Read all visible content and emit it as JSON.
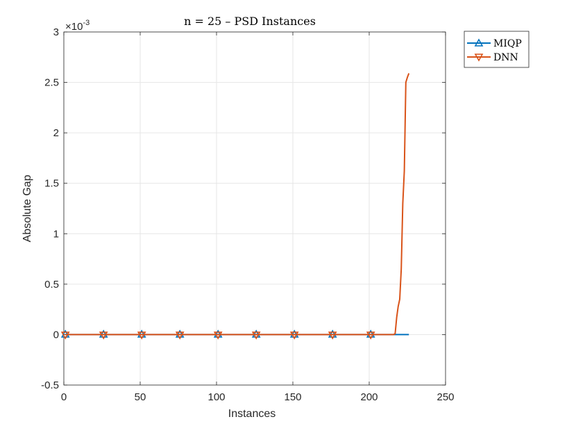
{
  "chart_data": {
    "type": "line",
    "title": "n = 25 – PSD Instances",
    "xlabel": "Instances",
    "ylabel": "Absolute Gap",
    "xlim": [
      0,
      250
    ],
    "ylim": [
      -0.5,
      3
    ],
    "y_exponent_label": "×10",
    "y_exponent_power": "-3",
    "xticks": [
      "0",
      "50",
      "100",
      "150",
      "200",
      "250"
    ],
    "xtick_values": [
      0,
      50,
      100,
      150,
      200,
      250
    ],
    "yticks": [
      "-0.5",
      "0",
      "0.5",
      "1",
      "1.5",
      "2",
      "2.5",
      "3"
    ],
    "ytick_values": [
      -0.5,
      0,
      0.5,
      1,
      1.5,
      2,
      2.5,
      3
    ],
    "grid": true,
    "legend_position": "outside-top-right",
    "series": [
      {
        "name": "MIQP",
        "color": "#0072BD",
        "marker": "triangle-up",
        "x": [
          1,
          26,
          51,
          76,
          101,
          126,
          151,
          176,
          201,
          226
        ],
        "y": [
          0,
          0,
          0,
          0,
          0,
          0,
          0,
          0,
          0,
          0
        ],
        "marker_indices": [
          0,
          1,
          2,
          3,
          4,
          5,
          6,
          7,
          8
        ]
      },
      {
        "name": "DNN",
        "color": "#D95319",
        "marker": "triangle-down",
        "x": [
          1,
          26,
          51,
          76,
          101,
          126,
          151,
          176,
          201,
          216,
          217,
          218,
          219,
          220,
          221,
          222,
          223,
          224,
          225,
          226
        ],
        "y": [
          0,
          0,
          0,
          0,
          0,
          0,
          0,
          0,
          0,
          0,
          0.01,
          0.17,
          0.28,
          0.35,
          0.65,
          1.3,
          1.62,
          2.5,
          2.55,
          2.59
        ],
        "marker_indices": [
          0,
          1,
          2,
          3,
          4,
          5,
          6,
          7,
          8
        ]
      }
    ]
  }
}
